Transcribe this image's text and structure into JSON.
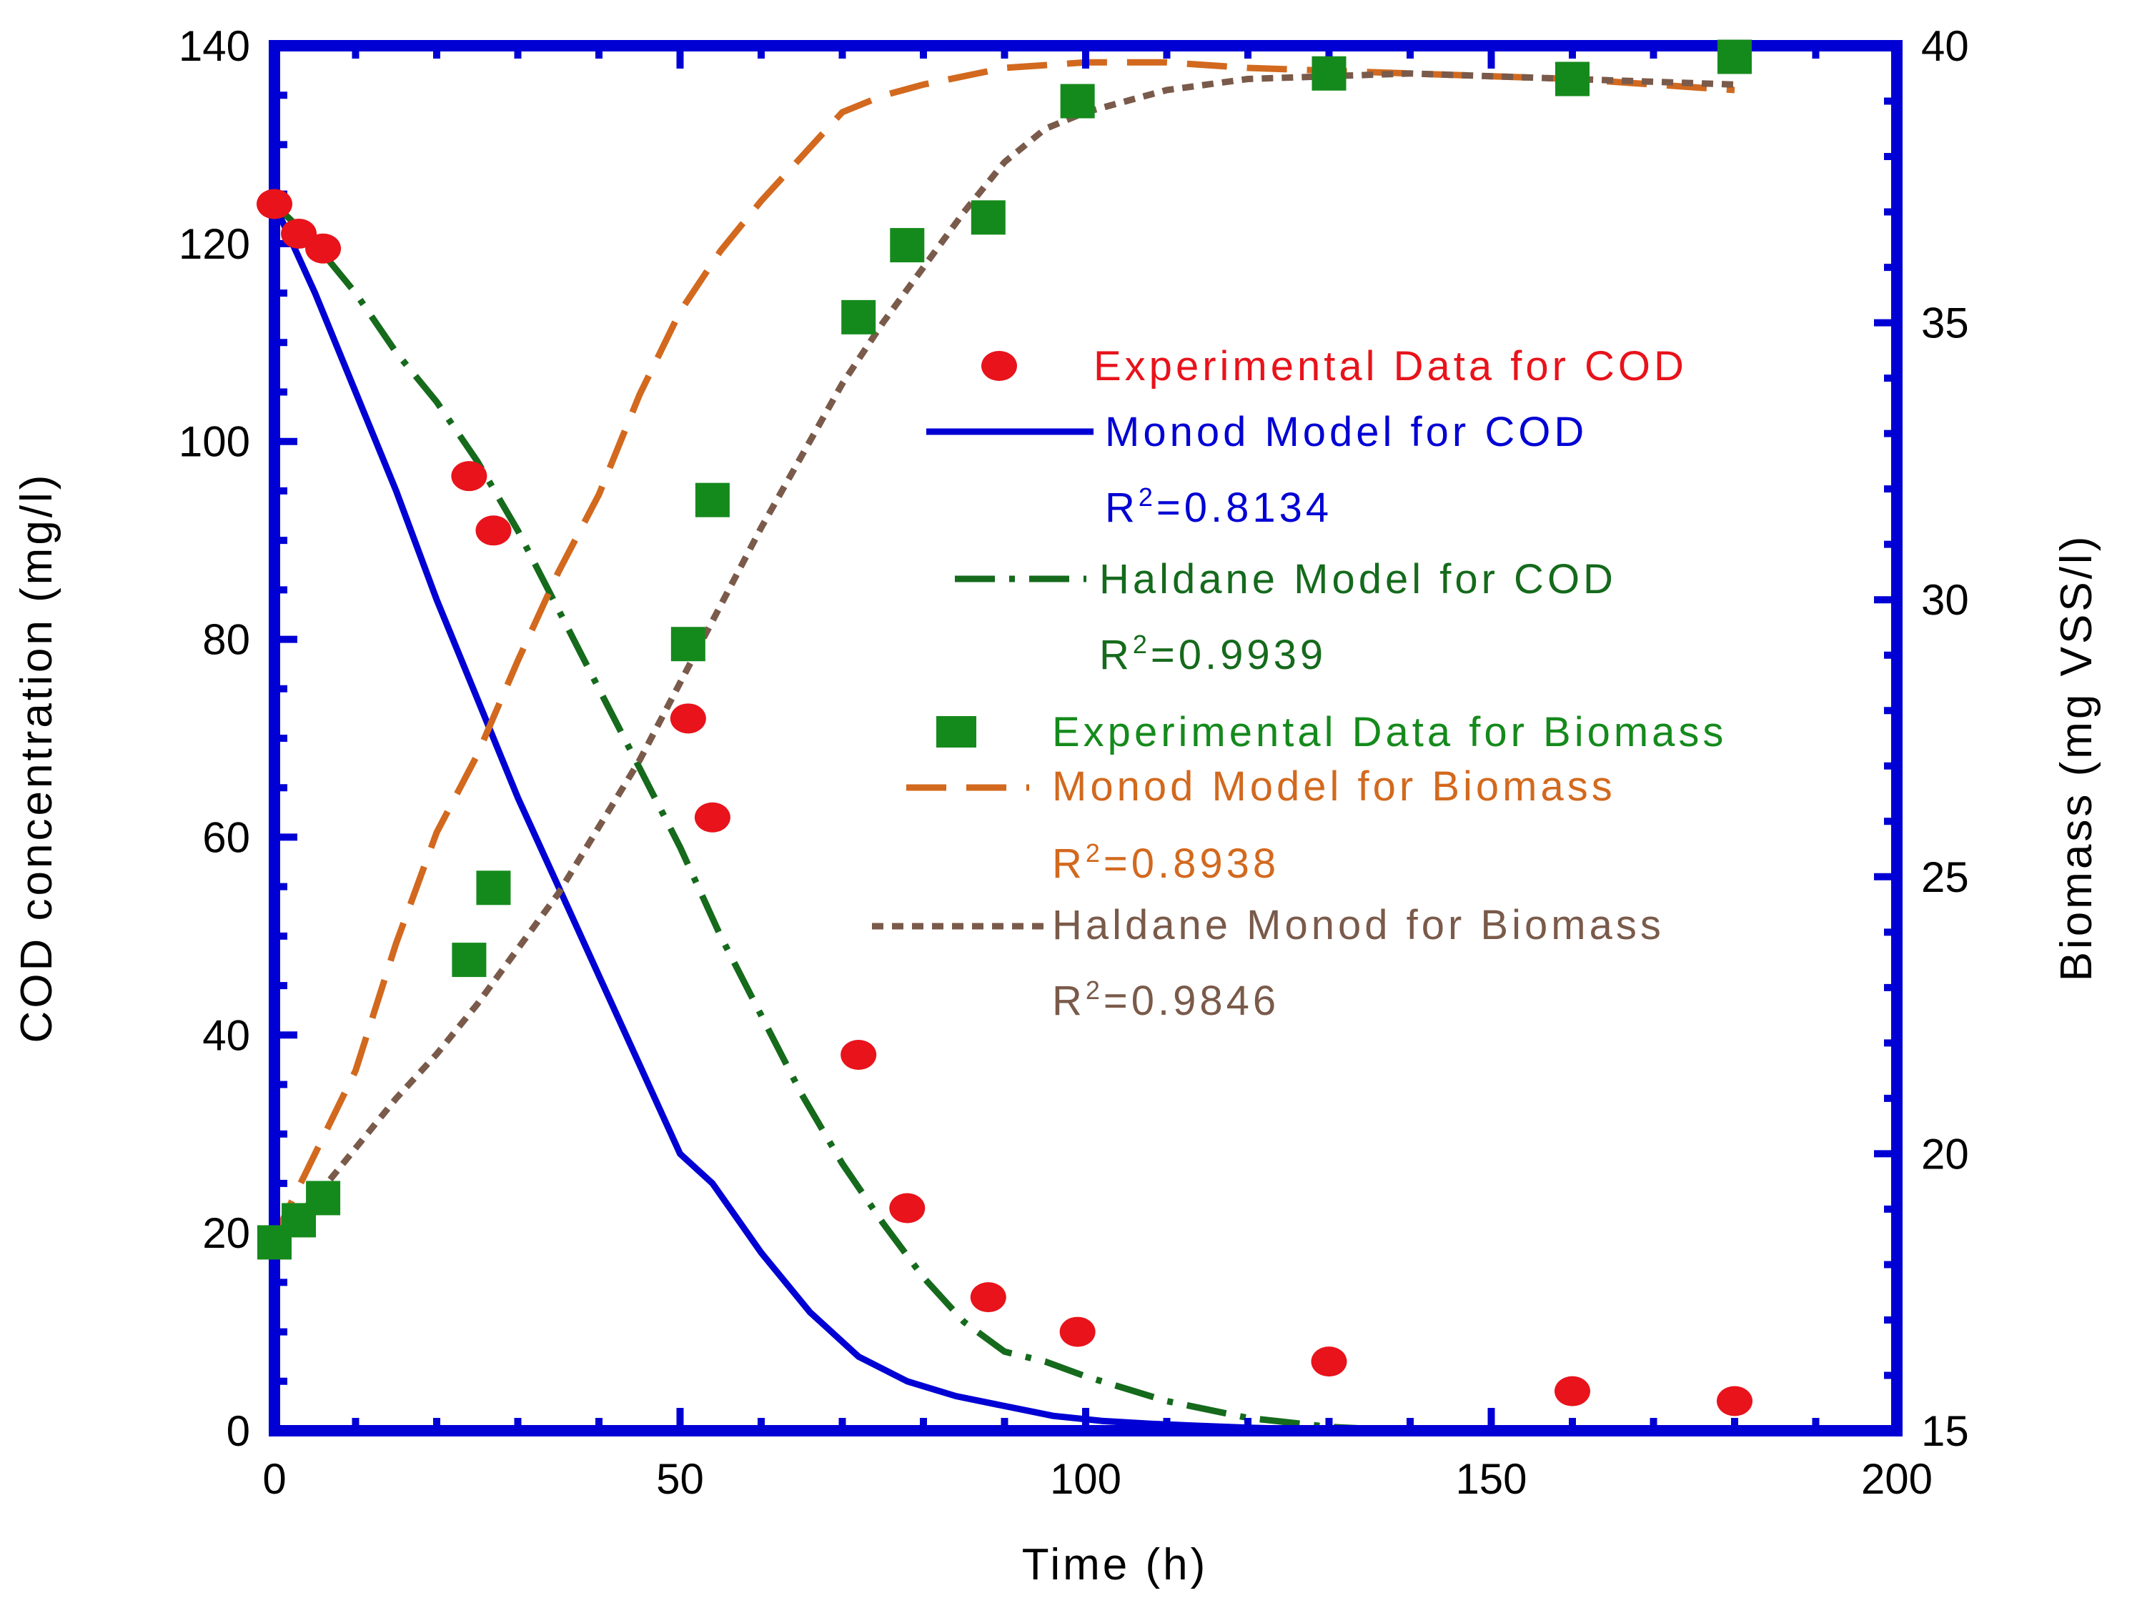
{
  "chart_data": {
    "type": "line",
    "title": "",
    "xlabel": "Time (h)",
    "ylabel": "COD concentration (mg/l)",
    "y2label": "Biomass (mg VSS/l)",
    "xlim": [
      0,
      200
    ],
    "ylim": [
      0,
      140
    ],
    "y2lim": [
      15,
      40
    ],
    "x_ticks": [
      "0",
      "50",
      "100",
      "150",
      "200"
    ],
    "y_ticks": [
      "0",
      "20",
      "40",
      "60",
      "80",
      "100",
      "120",
      "140"
    ],
    "y2_ticks": [
      "15",
      "20",
      "25",
      "30",
      "35",
      "40"
    ],
    "grid": false,
    "legend_position": "right-center",
    "series": [
      {
        "id": "exp_cod",
        "name": "Experimental Data for COD",
        "kind": "scatter",
        "marker": "circle",
        "axis": "left",
        "color": "#e8131b",
        "x": [
          0,
          3,
          6,
          24,
          27,
          51,
          54,
          72,
          78,
          88,
          99,
          130,
          160,
          180
        ],
        "y": [
          124,
          121,
          119.5,
          96.5,
          91,
          72,
          62,
          38,
          22.5,
          13.5,
          10,
          7,
          4,
          3
        ]
      },
      {
        "id": "monod_cod",
        "name": "Monod Model for COD",
        "kind": "line",
        "dash": "solid",
        "axis": "left",
        "color": "#0000d4",
        "r2_value": "=0.8134",
        "x": [
          0,
          5,
          10,
          15,
          20,
          25,
          30,
          35,
          40,
          45,
          50,
          54,
          60,
          66,
          72,
          78,
          84,
          90,
          96,
          102,
          108,
          114,
          120,
          130,
          140
        ],
        "y": [
          124,
          115,
          105,
          95,
          84,
          74,
          64,
          55,
          46,
          37,
          28,
          25,
          18,
          12,
          7.5,
          5,
          3.5,
          2.5,
          1.5,
          1,
          0.7,
          0.5,
          0.3,
          0.1,
          0
        ]
      },
      {
        "id": "haldane_cod",
        "name": "Haldane Model for COD",
        "kind": "line",
        "dash": "long-dash-dot",
        "axis": "left",
        "color": "#156a1c",
        "r2_value": "=0.9939",
        "x": [
          0,
          5,
          10,
          15,
          20,
          25,
          30,
          35,
          40,
          45,
          50,
          55,
          60,
          65,
          70,
          75,
          80,
          85,
          90,
          95,
          100,
          110,
          120,
          130,
          140
        ],
        "y": [
          124,
          120,
          115,
          109,
          104,
          98,
          91,
          83,
          75,
          67,
          59,
          50,
          42,
          34,
          27,
          21,
          15.5,
          11,
          8,
          7,
          5.5,
          3,
          1.3,
          0.4,
          0
        ]
      },
      {
        "id": "exp_biomass",
        "name": "Experimental Data for Biomass",
        "kind": "scatter",
        "marker": "square",
        "axis": "right",
        "color": "#158a1c",
        "x": [
          0,
          3,
          6,
          24,
          27,
          51,
          54,
          72,
          78,
          88,
          99,
          130,
          160,
          180
        ],
        "y": [
          18.4,
          18.8,
          19.2,
          23.5,
          24.8,
          29.2,
          31.8,
          35.1,
          36.4,
          36.9,
          39.0,
          39.5,
          39.4,
          39.8
        ]
      },
      {
        "id": "monod_biomass",
        "name": "Monod Model for Biomass",
        "kind": "line",
        "dash": "long-dash",
        "axis": "right",
        "color": "#d2691e",
        "r2_value": "=0.8938",
        "x": [
          0,
          5,
          10,
          15,
          20,
          25,
          30,
          35,
          40,
          45,
          50,
          55,
          60,
          65,
          70,
          75,
          80,
          90,
          100,
          110,
          120,
          140,
          160,
          180
        ],
        "y": [
          18.5,
          20.0,
          21.5,
          23.8,
          25.8,
          27.2,
          28.9,
          30.5,
          31.9,
          33.7,
          35.2,
          36.3,
          37.2,
          38.0,
          38.8,
          39.1,
          39.3,
          39.6,
          39.7,
          39.7,
          39.6,
          39.5,
          39.4,
          39.2
        ]
      },
      {
        "id": "haldane_biomass",
        "name": "Haldane Monod for Biomass",
        "kind": "line",
        "dash": "short-dash",
        "axis": "right",
        "color": "#7a5a4a",
        "r2_value": "=0.9846",
        "x": [
          0,
          5,
          10,
          15,
          20,
          25,
          30,
          35,
          40,
          45,
          50,
          55,
          60,
          65,
          70,
          75,
          80,
          85,
          90,
          95,
          100,
          110,
          120,
          140,
          160,
          180
        ],
        "y": [
          18.5,
          19.2,
          20.1,
          21.0,
          21.8,
          22.7,
          23.7,
          24.7,
          25.9,
          27.1,
          28.5,
          29.9,
          31.3,
          32.6,
          33.9,
          35.0,
          36.0,
          37.0,
          37.9,
          38.5,
          38.8,
          39.2,
          39.4,
          39.5,
          39.4,
          39.3
        ]
      }
    ]
  },
  "legend": {
    "r2_prefix": "R",
    "r2_exponent": "2"
  }
}
